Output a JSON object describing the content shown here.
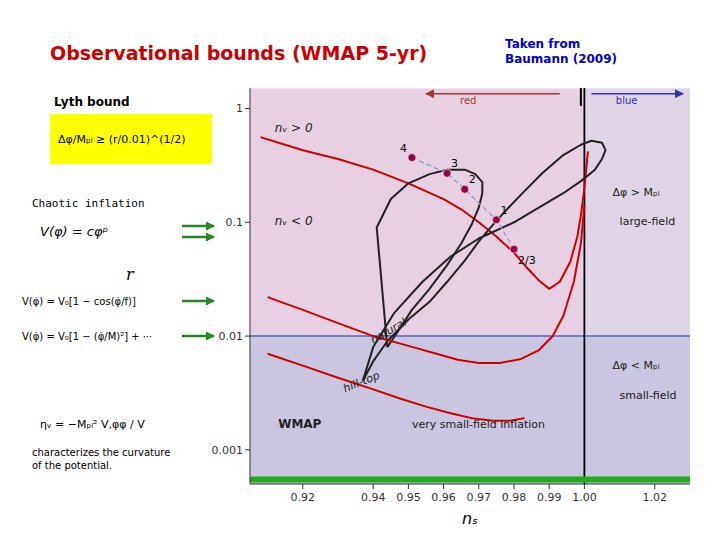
{
  "chart_data": {
    "type": "line",
    "title": "Observational bounds (WMAP 5-yr)",
    "title_color": "#cc0000",
    "subtitle": "Taken from\nBaumann (2009)",
    "subtitle_color": "#0000cc",
    "x_label": "nₛ",
    "y_label": "r",
    "log": "y",
    "xlim": [
      0.905,
      1.03
    ],
    "ylim": [
      0.0005011872336272725,
      1.5135612484362082
    ],
    "xticks": [
      0.92,
      0.94,
      0.95,
      0.96,
      0.97,
      0.98,
      0.99,
      {
        "value": 1.0,
        "label": "1.00"
      },
      1.02
    ],
    "yticks": [
      0.001,
      0.01,
      0.1,
      1
    ],
    "regions": [
      {
        "x": [
          0.905,
          1.03
        ],
        "y": [
          0.0005,
          1.5
        ],
        "color": "#d8b0d0"
      },
      {
        "x": [
          0.905,
          1.03
        ],
        "y": [
          0.0005,
          0.01
        ],
        "color": "#b8c0dc"
      },
      {
        "x": [
          1.0,
          1.03
        ],
        "y": [
          0.01,
          1.5
        ],
        "color": "#d8d8e8"
      }
    ],
    "hline": {
      "value": 0.01,
      "color": "#5566bb"
    },
    "vline": {
      "value": 1.0,
      "color": "black"
    },
    "baseline_bar": {
      "value": 0.00055,
      "color": "#22aa22"
    },
    "series": [
      {
        "type": "line",
        "color": "#cc0000",
        "x": [
          0.908,
          0.915,
          0.92,
          0.93,
          0.94,
          0.95,
          0.96,
          0.965,
          0.97,
          0.975,
          0.98,
          0.983,
          0.985,
          0.987,
          0.99,
          0.993,
          0.996,
          0.998,
          0.999,
          1.0,
          1.001
        ],
        "values": [
          0.56,
          0.48,
          0.43,
          0.36,
          0.29,
          0.22,
          0.16,
          0.13,
          0.1,
          0.075,
          0.054,
          0.042,
          0.036,
          0.031,
          0.026,
          0.03,
          0.045,
          0.075,
          0.115,
          0.2,
          0.42
        ]
      },
      {
        "type": "line",
        "color": "#222222",
        "x": [
          0.937,
          0.94,
          0.944,
          0.95,
          0.956,
          0.961,
          0.966,
          0.97,
          0.974,
          0.978,
          0.982,
          0.988,
          0.994,
          0.999,
          1.002,
          1.005,
          1.006,
          1.005,
          1.003,
          0.999,
          0.994,
          0.988,
          0.98,
          0.97,
          0.962,
          0.954,
          0.946,
          0.94,
          0.937
        ],
        "values": [
          0.004,
          0.006,
          0.009,
          0.014,
          0.02,
          0.03,
          0.046,
          0.068,
          0.095,
          0.13,
          0.175,
          0.27,
          0.39,
          0.48,
          0.52,
          0.5,
          0.43,
          0.36,
          0.29,
          0.23,
          0.18,
          0.14,
          0.1,
          0.072,
          0.05,
          0.03,
          0.016,
          0.008,
          0.004
        ]
      },
      {
        "type": "line",
        "color": "#222222",
        "x": [
          0.944,
          0.947,
          0.951,
          0.956,
          0.961,
          0.965,
          0.968,
          0.97,
          0.971,
          0.971,
          0.969,
          0.966,
          0.961,
          0.956,
          0.95,
          0.945,
          0.941,
          0.944
        ],
        "values": [
          0.008,
          0.011,
          0.017,
          0.026,
          0.042,
          0.065,
          0.096,
          0.135,
          0.18,
          0.225,
          0.265,
          0.29,
          0.29,
          0.265,
          0.22,
          0.16,
          0.09,
          0.008
        ]
      },
      {
        "type": "line",
        "color": "#8899cc",
        "line_style": "dashed",
        "x": [
          0.951,
          0.961,
          0.966,
          0.975,
          0.98
        ],
        "values": [
          0.37,
          0.27,
          0.195,
          0.105,
          0.058
        ]
      },
      {
        "type": "scatter",
        "color": "#990044",
        "marker": "circle",
        "x": [
          0.951,
          0.961,
          0.966,
          0.975,
          0.98
        ],
        "values": [
          0.37,
          0.27,
          0.195,
          0.105,
          0.058
        ],
        "point_labels": [
          "4",
          "3",
          "2",
          "1",
          "2/3"
        ]
      },
      {
        "type": "line",
        "color": "#cc0000",
        "x": [
          0.91,
          0.92,
          0.93,
          0.94,
          0.95,
          0.958,
          0.964,
          0.97,
          0.976,
          0.982,
          0.987,
          0.991,
          0.994,
          0.997,
          0.999,
          1.0
        ],
        "values": [
          0.022,
          0.017,
          0.013,
          0.01,
          0.0082,
          0.007,
          0.0062,
          0.0058,
          0.0058,
          0.0063,
          0.0075,
          0.01,
          0.015,
          0.03,
          0.065,
          0.14
        ]
      },
      {
        "type": "line",
        "color": "#cc0000",
        "x": [
          0.91,
          0.92,
          0.93,
          0.94,
          0.948,
          0.955,
          0.962,
          0.968,
          0.974,
          0.979,
          0.983
        ],
        "values": [
          0.007,
          0.0055,
          0.0043,
          0.0034,
          0.0028,
          0.0024,
          0.0021,
          0.0019,
          0.0018,
          0.0018,
          0.0019
        ]
      }
    ],
    "arrows": [
      {
        "from": 0.993,
        "to": 0.955,
        "y": 1.35,
        "color": "#aa3333",
        "label": "red",
        "label_x": 0.967,
        "label_y": 1.15
      },
      {
        "from": 1.002,
        "to": 1.028,
        "y": 1.35,
        "color": "#3333aa",
        "label": "blue",
        "label_x": 1.012,
        "label_y": 1.15
      }
    ],
    "separator": {
      "x": 0.999,
      "y": [
        1.05,
        1.7
      ],
      "color": "black"
    },
    "annotations": [
      {
        "text": "nᵥ > 0",
        "x": 0.912,
        "y": 0.62
      },
      {
        "text": "nᵥ < 0",
        "x": 0.912,
        "y": 0.095
      },
      {
        "text": "WMAP",
        "x": 0.913,
        "y": 0.00155
      },
      {
        "text": "very small-field inflation",
        "x": 0.951,
        "y": 0.00155
      },
      {
        "text": "natural",
        "x": 0.94,
        "y": 0.0085
      },
      {
        "text": "hill-top",
        "x": 0.932,
        "y": 0.0032
      },
      {
        "text": "Δφ > Mₚₗ",
        "x": 1.008,
        "y": 0.18
      },
      {
        "text": "large-field",
        "x": 1.01,
        "y": 0.1
      },
      {
        "text": "Δφ < Mₚₗ",
        "x": 1.008,
        "y": 0.0055
      },
      {
        "text": "small-field",
        "x": 1.01,
        "y": 0.003
      }
    ],
    "notes": [
      "Lyth bound",
      "Δφ/Mₚₗ ≥ (r/0.01)^(1/2)",
      "Chaotic inflation",
      "V(φ) = cφᵖ",
      "V(φ̇) = V₀[1 − cos(φ̇/f)]",
      "V(φ̇) = V₀[1 − (φ̇/M)²] + ⋯",
      "ηᵥ = −Mₚₗ² V,φφ / V",
      "characterizes the curvature\nof the potential."
    ],
    "highlight_color": "#ffff00",
    "pointer_color": "#228822"
  }
}
